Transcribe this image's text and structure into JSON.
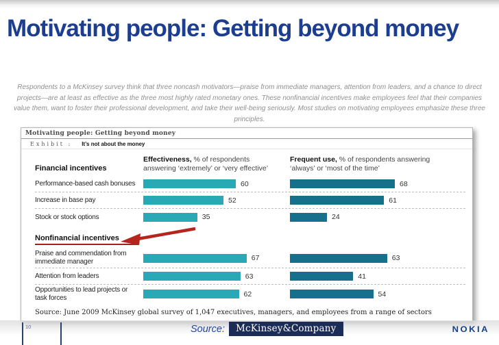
{
  "slide": {
    "title": "Motivating people: Getting beyond money",
    "intro": "Respondents to a McKinsey survey think that three noncash motivators—praise from immediate managers, attention from leaders, and a chance to direct projects—are at least as effective as the three most highly rated monetary ones. These nonfinancial incentives make employees feel that their companies value them, want to foster their professional development, and take their well-being seriously. Most studies on motivating employees emphasize these three principles."
  },
  "exhibit": {
    "header": "Motivating people: Getting beyond money",
    "exhibit_label": "Exhibit :",
    "exhibit_title": "It’s not about the money",
    "col1": {
      "bold": "Effectiveness,",
      "rest": " % of respondents answering ‘extremely’ or ‘very effective’"
    },
    "col2": {
      "bold": "Frequent use,",
      "rest": " % of respondents answering ‘always’ or ‘most of the time’"
    },
    "source": "Source: June 2009 McKinsey global survey of 1,047 executives, managers, and employees from a range of sectors"
  },
  "chart_data": {
    "type": "bar",
    "orientation": "horizontal",
    "series": [
      "Effectiveness",
      "Frequent use"
    ],
    "unit": "% of respondents",
    "xlim": [
      0,
      100
    ],
    "groups": [
      {
        "label": "Financial incentives",
        "rows": [
          {
            "label": "Performance-based cash bonuses",
            "effectiveness": 60,
            "frequent_use": 68
          },
          {
            "label": "Increase in base pay",
            "effectiveness": 52,
            "frequent_use": 61
          },
          {
            "label": "Stock or stock options",
            "effectiveness": 35,
            "frequent_use": 24
          }
        ]
      },
      {
        "label": "Nonfinancial incentives",
        "rows": [
          {
            "label": "Praise and commendation from immediate manager",
            "effectiveness": 67,
            "frequent_use": 63
          },
          {
            "label": "Attention from leaders",
            "effectiveness": 63,
            "frequent_use": 41
          },
          {
            "label": "Opportunities to lead projects or task forces",
            "effectiveness": 62,
            "frequent_use": 54
          }
        ]
      }
    ]
  },
  "colors": {
    "bar_effectiveness": "#29A8B5",
    "bar_frequent_use": "#16708C",
    "accent_red": "#B6251D",
    "title_blue": "#1D3E8F"
  },
  "footer": {
    "page_number": "10",
    "source_label": "Source:",
    "mckinsey_logo": "McKinsey&Company",
    "nokia_logo": "NOKIA"
  }
}
